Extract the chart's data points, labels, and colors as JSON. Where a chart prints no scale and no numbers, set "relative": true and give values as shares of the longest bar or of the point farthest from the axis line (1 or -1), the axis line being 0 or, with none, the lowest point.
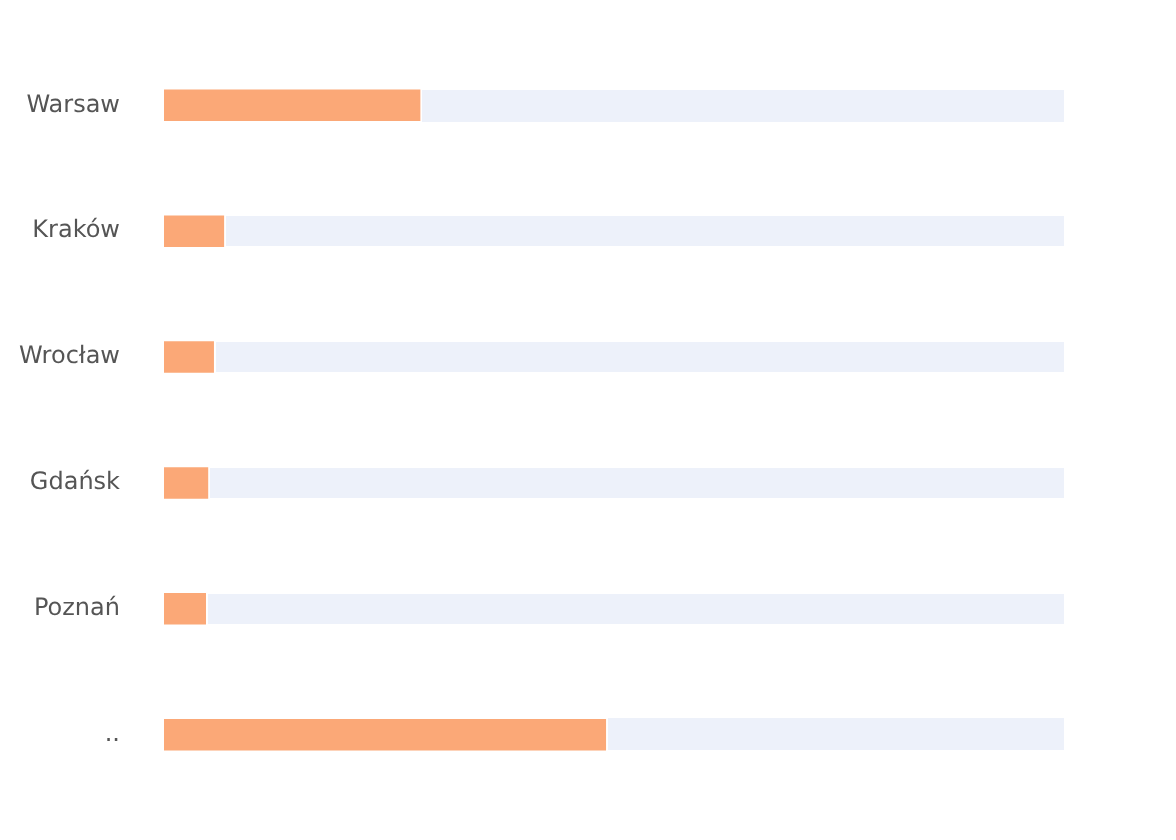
{
  "chart_data": {
    "type": "bar",
    "orientation": "horizontal",
    "relative": true,
    "categories": [
      "Warsaw",
      "Kraków",
      "Wrocław",
      "Gdańsk",
      "Poznań",
      ".."
    ],
    "series": [
      {
        "color": "#fba877",
        "values": [
          0.58,
          0.136,
          0.113,
          0.1,
          0.095,
          1
        ]
      }
    ]
  }
}
